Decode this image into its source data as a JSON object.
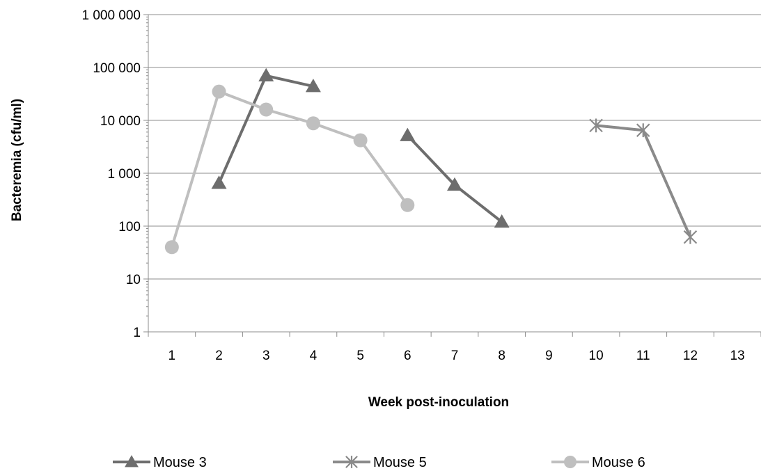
{
  "chart_data": {
    "type": "line",
    "title": "",
    "xlabel": "Week post-inoculation",
    "ylabel": "Bacteremia (cfu/ml)",
    "yscale": "log",
    "ylim": [
      1,
      1000000
    ],
    "y_ticks": [
      {
        "value": 1,
        "label": "1"
      },
      {
        "value": 10,
        "label": "10"
      },
      {
        "value": 100,
        "label": "100"
      },
      {
        "value": 1000,
        "label": "1 000"
      },
      {
        "value": 10000,
        "label": "10 000"
      },
      {
        "value": 100000,
        "label": "100 000"
      },
      {
        "value": 1000000,
        "label": "1 000 000"
      }
    ],
    "categories": [
      "1",
      "2",
      "3",
      "4",
      "5",
      "6",
      "7",
      "8",
      "9",
      "10",
      "11",
      "12",
      "13"
    ],
    "grid": "horizontal major gridlines",
    "legend_position": "bottom",
    "series": [
      {
        "name": "Mouse 3",
        "color": "#6d6d6d",
        "marker": "triangle",
        "segments": [
          [
            {
              "x": "2",
              "y": 650
            },
            {
              "x": "3",
              "y": 70000
            },
            {
              "x": "4",
              "y": 44000
            }
          ],
          [
            {
              "x": "6",
              "y": 5200
            },
            {
              "x": "7",
              "y": 600
            },
            {
              "x": "8",
              "y": 120
            }
          ]
        ]
      },
      {
        "name": "Mouse 5",
        "color": "#8a8a8a",
        "marker": "star",
        "segments": [
          [
            {
              "x": "10",
              "y": 8000
            },
            {
              "x": "11",
              "y": 6500
            },
            {
              "x": "12",
              "y": 62
            }
          ]
        ]
      },
      {
        "name": "Mouse 6",
        "color": "#bfbfbf",
        "marker": "circle",
        "segments": [
          [
            {
              "x": "1",
              "y": 40
            },
            {
              "x": "2",
              "y": 35000
            },
            {
              "x": "3",
              "y": 16000
            },
            {
              "x": "4",
              "y": 8800
            },
            {
              "x": "5",
              "y": 4200
            },
            {
              "x": "6",
              "y": 250
            }
          ]
        ]
      }
    ]
  }
}
